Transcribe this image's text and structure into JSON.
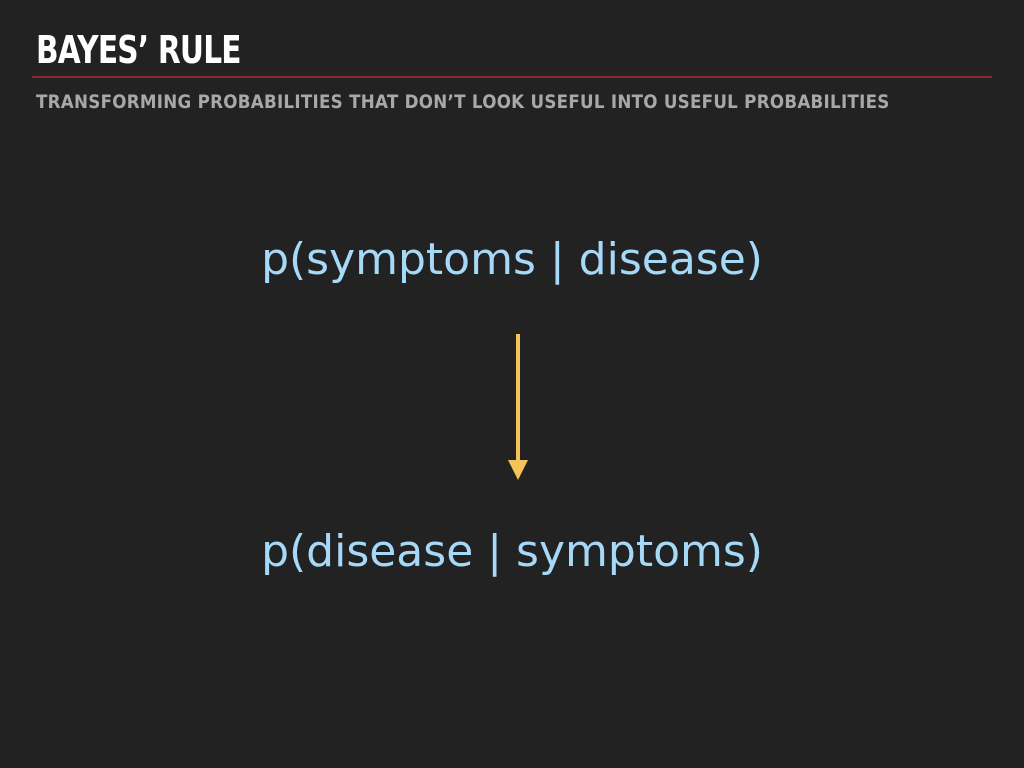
{
  "slide": {
    "title": "BAYES’ RULE",
    "subtitle": "TRANSFORMING PROBABILITIES THAT DON’T LOOK USEFUL INTO USEFUL PROBABILITIES",
    "from_expression": "p(symptoms | disease)",
    "to_expression": "p(disease | symptoms)",
    "arrow_icon": "down-arrow-icon"
  },
  "colors": {
    "background": "#222222",
    "title": "#ffffff",
    "rule": "#8a2a2a",
    "subtitle": "#a8a8a8",
    "expression": "#a6d8f7",
    "arrow": "#f4c35a"
  }
}
